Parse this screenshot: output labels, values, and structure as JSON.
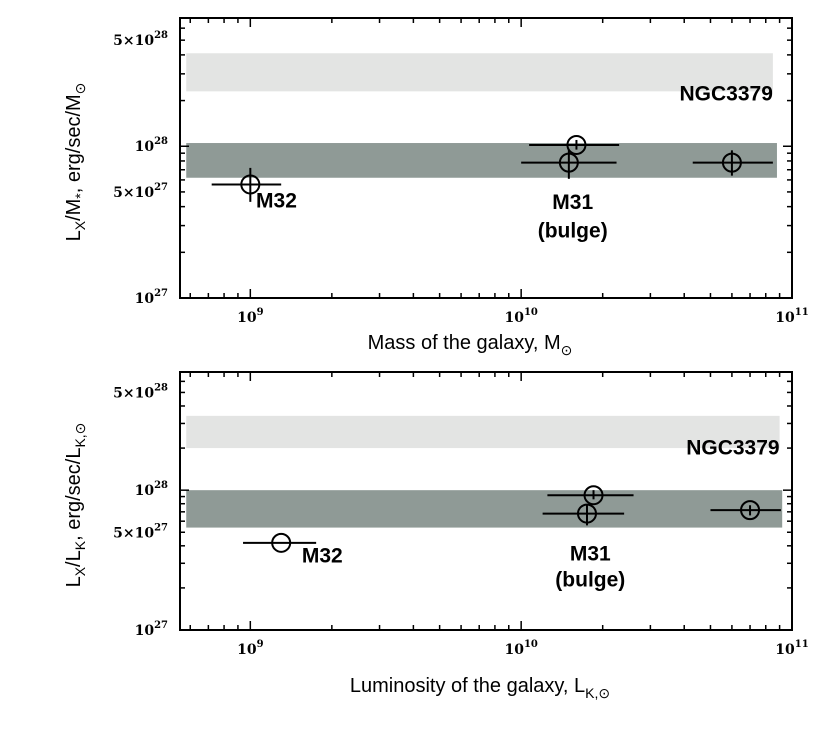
{
  "chart_data": [
    {
      "type": "scatter",
      "xscale": "log",
      "yscale": "log",
      "xlim": [
        550000000.0,
        100000000000.0
      ],
      "ylim": [
        1e+27,
        7e+28
      ],
      "xticks": [
        {
          "value": 1000000000.0,
          "mantissa": "10",
          "exp": "9"
        },
        {
          "value": 10000000000.0,
          "mantissa": "10",
          "exp": "10"
        },
        {
          "value": 100000000000.0,
          "mantissa": "10",
          "exp": "11"
        }
      ],
      "yticks": [
        {
          "value": 1e+27,
          "mantissa": "10",
          "exp": "27"
        },
        {
          "value": 5e+27,
          "mantissa": "5×10",
          "exp": "27"
        },
        {
          "value": 1e+28,
          "mantissa": "10",
          "exp": "28"
        },
        {
          "value": 5e+28,
          "mantissa": "5×10",
          "exp": "28"
        }
      ],
      "xlabel": {
        "text": "Mass of the galaxy, M",
        "sub": "⊙"
      },
      "ylabel": {
        "base": "L",
        "sub1": "X",
        "mid": "/M",
        "sub2": "*",
        "rest": ", erg/sec/M",
        "sub3": "⊙"
      },
      "bands": [
        {
          "name": "NGC3379",
          "x0": 580000000.0,
          "x1": 85000000000.0,
          "y0": 2.3e+28,
          "y1": 4.1e+28,
          "color": "#e3e4e3"
        },
        {
          "name": "M31 bulge",
          "x0": 580000000.0,
          "x1": 88000000000.0,
          "y0": 6.2e+27,
          "y1": 1.05e+28,
          "color": "#8f9a96"
        }
      ],
      "points": [
        {
          "x": 1000000000.0,
          "y": 5.6e+27,
          "xerr": [
            720000000.0,
            1300000000.0
          ],
          "yerr": [
            4.3e+27,
            7.2e+27
          ]
        },
        {
          "x": 16000000000.0,
          "y": 1.02e+28,
          "xerr": [
            10700000000.0,
            23000000000.0
          ],
          "yerr": [
            9.5e+27,
            1.1e+28
          ]
        },
        {
          "x": 15000000000.0,
          "y": 7.8e+27,
          "xerr": [
            10000000000.0,
            22500000000.0
          ],
          "yerr": [
            6.1e+27,
            9.5e+27
          ]
        },
        {
          "x": 60000000000.0,
          "y": 7.8e+27,
          "xerr": [
            43000000000.0,
            85000000000.0
          ],
          "yerr": [
            6.4e+27,
            9.4e+27
          ]
        }
      ],
      "annotations": [
        {
          "text": "NGC3379",
          "x": 85000000000.0,
          "y": 2e+28,
          "anchor": "end"
        },
        {
          "text": "M32",
          "x": 1050000000.0,
          "y": 3.95e+27,
          "anchor": "start"
        },
        {
          "text": "M31",
          "x": 15500000000.0,
          "y": 3.85e+27,
          "anchor": "middle"
        },
        {
          "text": "(bulge)",
          "x": 15500000000.0,
          "y": 2.5e+27,
          "anchor": "middle"
        }
      ]
    },
    {
      "type": "scatter",
      "xscale": "log",
      "yscale": "log",
      "xlim": [
        550000000.0,
        100000000000.0
      ],
      "ylim": [
        1e+27,
        7e+28
      ],
      "xticks": [
        {
          "value": 1000000000.0,
          "mantissa": "10",
          "exp": "9"
        },
        {
          "value": 10000000000.0,
          "mantissa": "10",
          "exp": "10"
        },
        {
          "value": 100000000000.0,
          "mantissa": "10",
          "exp": "11"
        }
      ],
      "yticks": [
        {
          "value": 1e+27,
          "mantissa": "10",
          "exp": "27"
        },
        {
          "value": 5e+27,
          "mantissa": "5×10",
          "exp": "27"
        },
        {
          "value": 1e+28,
          "mantissa": "10",
          "exp": "28"
        },
        {
          "value": 5e+28,
          "mantissa": "5×10",
          "exp": "28"
        }
      ],
      "xlabel": {
        "text": "Luminosity of the galaxy, L",
        "sub": "K,⊙"
      },
      "ylabel": {
        "base": "L",
        "sub1": "X",
        "mid": "/L",
        "sub2": "K",
        "rest": ", erg/sec/L",
        "sub3": "K,⊙"
      },
      "bands": [
        {
          "name": "NGC3379",
          "x0": 580000000.0,
          "x1": 90000000000.0,
          "y0": 2e+28,
          "y1": 3.4e+28,
          "color": "#e3e4e3"
        },
        {
          "name": "M31 bulge",
          "x0": 580000000.0,
          "x1": 92000000000.0,
          "y0": 5.4e+27,
          "y1": 1e+28,
          "color": "#8f9a96"
        }
      ],
      "points": [
        {
          "x": 1300000000.0,
          "y": 4.2e+27,
          "xerr": [
            940000000.0,
            1750000000.0
          ],
          "yerr": [
            4.2e+27,
            4.2e+27
          ]
        },
        {
          "x": 18500000000.0,
          "y": 9.2e+27,
          "xerr": [
            12500000000.0,
            26000000000.0
          ],
          "yerr": [
            8.6e+27,
            1e+28
          ]
        },
        {
          "x": 17500000000.0,
          "y": 6.8e+27,
          "xerr": [
            12000000000.0,
            24000000000.0
          ],
          "yerr": [
            5.6e+27,
            7.8e+27
          ]
        },
        {
          "x": 70000000000.0,
          "y": 7.2e+27,
          "xerr": [
            50000000000.0,
            91000000000.0
          ],
          "yerr": [
            6.6e+27,
            7.8e+27
          ]
        }
      ],
      "annotations": [
        {
          "text": "NGC3379",
          "x": 90000000000.0,
          "y": 1.8e+28,
          "anchor": "end"
        },
        {
          "text": "M32",
          "x": 1550000000.0,
          "y": 3.05e+27,
          "anchor": "start"
        },
        {
          "text": "M31",
          "x": 18000000000.0,
          "y": 3.15e+27,
          "anchor": "middle"
        },
        {
          "text": "(bulge)",
          "x": 18000000000.0,
          "y": 2.05e+27,
          "anchor": "middle"
        }
      ]
    }
  ]
}
